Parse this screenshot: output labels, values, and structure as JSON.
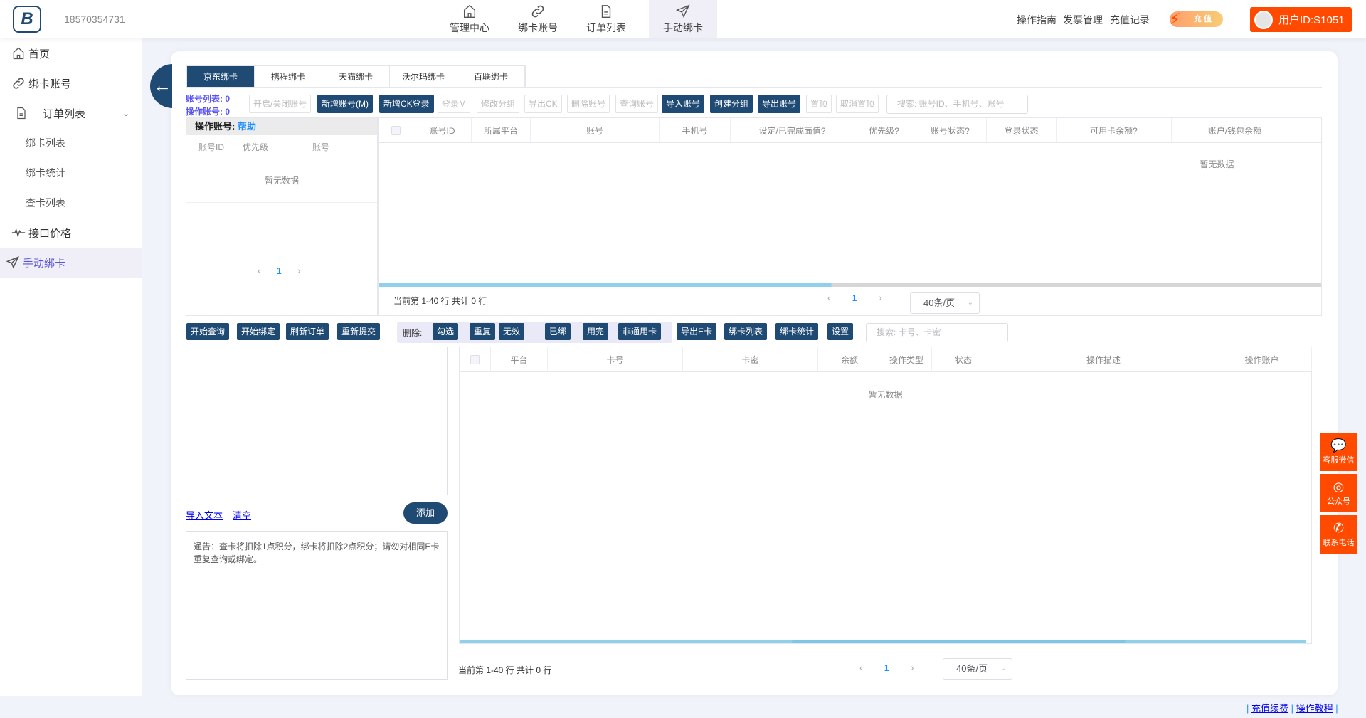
{
  "header": {
    "phone": "18570354731",
    "nav": [
      {
        "label": "管理中心",
        "icon": "home-icon"
      },
      {
        "label": "绑卡账号",
        "icon": "link-icon"
      },
      {
        "label": "订单列表",
        "icon": "document-icon"
      },
      {
        "label": "手动绑卡",
        "icon": "send-icon",
        "active": true
      }
    ],
    "links": [
      "操作指南",
      "发票管理",
      "充值记录"
    ],
    "charge_label": "充 值",
    "user_label": "用户ID:S1051"
  },
  "sidebar": {
    "items": [
      {
        "label": "首页",
        "icon": "home-icon"
      },
      {
        "label": "绑卡账号",
        "icon": "link-icon"
      },
      {
        "label": "订单列表",
        "icon": "document-icon",
        "expanded": true
      },
      {
        "label": "绑卡列表",
        "sub": true
      },
      {
        "label": "绑卡统计",
        "sub": true
      },
      {
        "label": "查卡列表",
        "sub": true
      },
      {
        "label": "接口价格",
        "icon": "pulse-icon"
      },
      {
        "label": "手动绑卡",
        "icon": "send-icon",
        "active": true
      }
    ]
  },
  "tabs": [
    "京东绑卡",
    "携程绑卡",
    "天猫绑卡",
    "沃尔玛绑卡",
    "百联绑卡"
  ],
  "counts": {
    "account_list": "账号列表: 0",
    "operate_account": "操作账号: 0"
  },
  "toolbar1": [
    {
      "label": "开启/关闭账号",
      "enabled": false
    },
    {
      "label": "新增账号(M)",
      "enabled": true
    },
    {
      "label": "新增CK登录",
      "enabled": true
    },
    {
      "label": "登录M",
      "enabled": false
    },
    {
      "label": "修改分组",
      "enabled": false
    },
    {
      "label": "导出CK",
      "enabled": false
    },
    {
      "label": "删除账号",
      "enabled": false
    },
    {
      "label": "查询账号",
      "enabled": false
    },
    {
      "label": "导入账号",
      "enabled": true
    },
    {
      "label": "创建分组",
      "enabled": true
    },
    {
      "label": "导出账号",
      "enabled": true
    },
    {
      "label": "置顶",
      "enabled": false
    },
    {
      "label": "取消置顶",
      "enabled": false
    }
  ],
  "toolbar1_search_placeholder": "搜索: 账号ID、手机号、账号",
  "left_panel": {
    "title": "操作账号:",
    "help": "帮助",
    "columns": [
      "账号ID",
      "优先级",
      "账号"
    ],
    "empty": "暂无数据",
    "page": "1"
  },
  "account_table": {
    "columns": [
      "账号ID",
      "所属平台",
      "账号",
      "手机号",
      "设定/已完成面值?",
      "优先级?",
      "账号状态?",
      "登录状态",
      "可用卡余额?",
      "账户/钱包余额"
    ],
    "empty": "暂无数据",
    "summary": "当前第 1-40 行  共计 0 行",
    "page": "1",
    "page_size": "40条/页"
  },
  "toolbar2": {
    "left": [
      "开始查询",
      "开始绑定",
      "刷新订单",
      "重新提交"
    ],
    "delete_label": "删除:",
    "delete": [
      "勾选",
      "重复",
      "无效",
      "已绑",
      "用完",
      "非通用卡"
    ],
    "right": [
      "导出E卡",
      "绑卡列表",
      "绑卡统计",
      "设置"
    ],
    "search_placeholder": "搜索: 卡号、卡密"
  },
  "input": {
    "import_text": "导入文本",
    "clear": "清空",
    "add": "添加",
    "notice": "通告：查卡将扣除1点积分，绑卡将扣除2点积分；请勿对相同E卡重复查询或绑定。"
  },
  "card_table": {
    "columns": [
      "平台",
      "卡号",
      "卡密",
      "余额",
      "操作类型",
      "状态",
      "操作描述",
      "操作账户"
    ],
    "empty": "暂无数据",
    "summary": "当前第 1-40 行  共计 0 行",
    "page": "1",
    "page_size": "40条/页"
  },
  "float": [
    {
      "label": "客服微信",
      "icon": "wechat-icon"
    },
    {
      "label": "公众号",
      "icon": "official-account-icon"
    },
    {
      "label": "联系电话",
      "icon": "phone-icon"
    }
  ],
  "footer": [
    "充值续费",
    "操作教程"
  ],
  "colors": {
    "primary": "#1f4a74",
    "accent": "#ff4a00",
    "link": "#5a55f0"
  }
}
